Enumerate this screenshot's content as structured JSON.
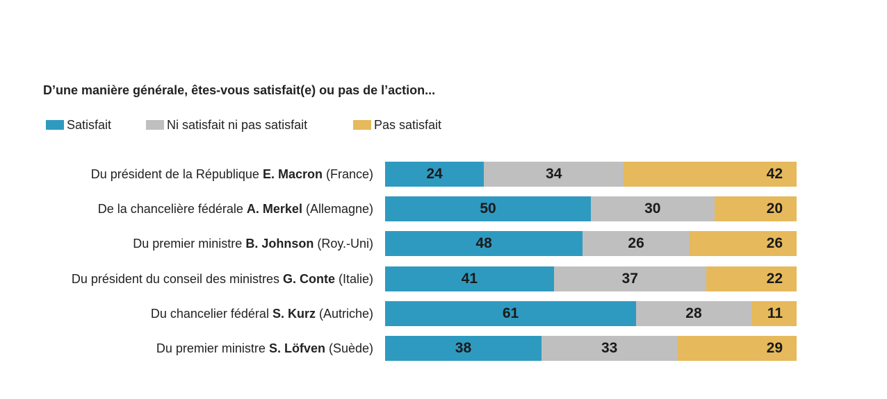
{
  "chart_data": {
    "type": "bar",
    "orientation": "horizontal",
    "stacked": true,
    "title": "D’une manière générale, êtes-vous satisfait(e) ou pas de l’action...",
    "unit": "%",
    "legend_position": "top-left",
    "series": [
      {
        "name": "Satisfait",
        "color": "#2f9ac0",
        "values": [
          24,
          50,
          48,
          41,
          61,
          38
        ]
      },
      {
        "name": "Ni satisfait ni pas satisfait",
        "color": "#bfbfbf",
        "values": [
          34,
          30,
          26,
          37,
          28,
          33
        ]
      },
      {
        "name": "Pas satisfait",
        "color": "#e6b95c",
        "values": [
          42,
          20,
          26,
          22,
          11,
          29
        ]
      }
    ],
    "categories": [
      {
        "prefix": "Du président de la République ",
        "name": "E. Macron",
        "suffix": " (France)"
      },
      {
        "prefix": "De la chancelière fédérale ",
        "name": "A. Merkel",
        "suffix": " (Allemagne)"
      },
      {
        "prefix": "Du premier ministre ",
        "name": "B. Johnson",
        "suffix": " (Roy.-Uni)"
      },
      {
        "prefix": "Du président du conseil des ministres ",
        "name": "G. Conte",
        "suffix": " (Italie)"
      },
      {
        "prefix": "Du chancelier fédéral ",
        "name": "S. Kurz",
        "suffix": " (Autriche)"
      },
      {
        "prefix": "Du premier ministre ",
        "name": "S. Löfven",
        "suffix": " (Suède)"
      }
    ]
  }
}
